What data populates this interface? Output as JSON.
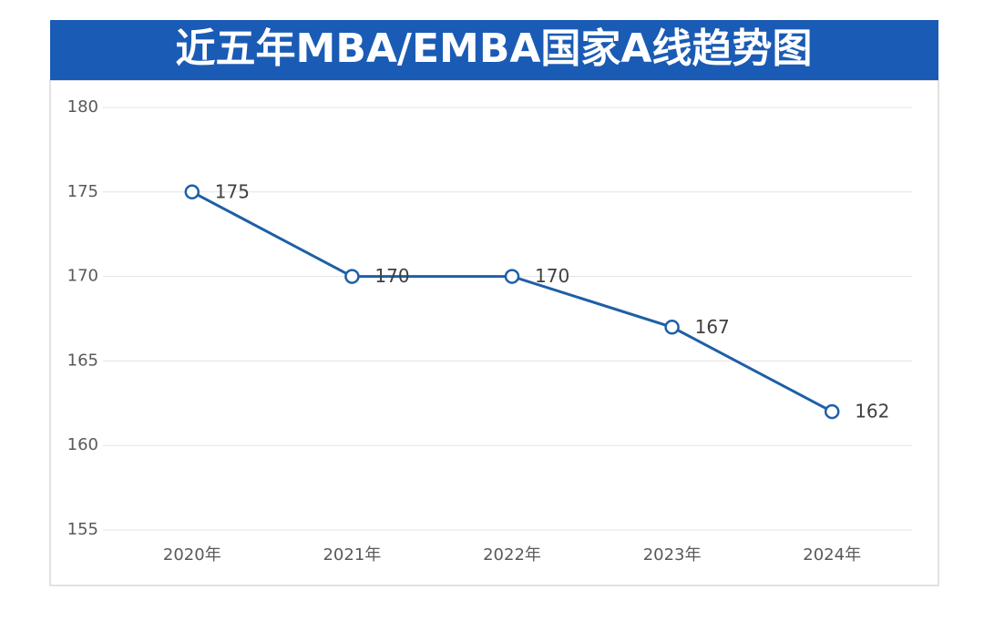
{
  "chart_data": {
    "type": "line",
    "title": "近五年MBA/EMBA国家A线趋势图",
    "categories": [
      "2020年",
      "2021年",
      "2022年",
      "2023年",
      "2024年"
    ],
    "values": [
      175,
      170,
      170,
      167,
      162
    ],
    "color": "#1f5fa6",
    "ylim": [
      155,
      180
    ],
    "yticks": [
      155,
      160,
      165,
      170,
      175,
      180
    ],
    "grid": true
  }
}
